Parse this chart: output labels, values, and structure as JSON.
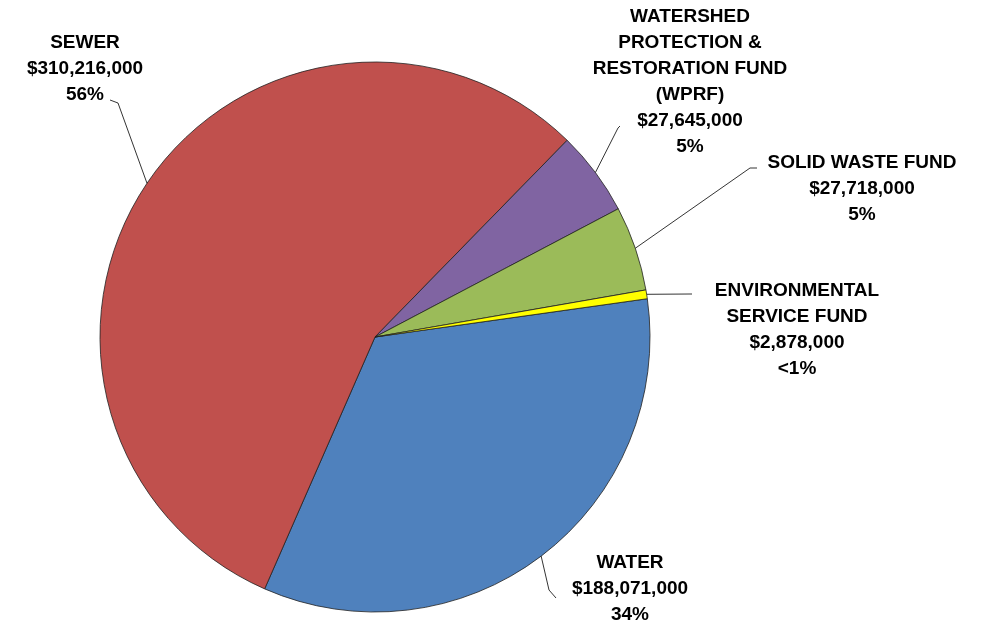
{
  "chart_data": {
    "type": "pie",
    "categories": [
      "WATER",
      "SEWER",
      "WATERSHED PROTECTION & RESTORATION FUND (WPRF)",
      "SOLID WASTE FUND",
      "ENVIRONMENTAL SERVICE FUND"
    ],
    "values": [
      188071000,
      310216000,
      27645000,
      27718000,
      2878000
    ],
    "colors": [
      "#4f81bd",
      "#c0504d",
      "#8064a2",
      "#9bbb59",
      "#ffff00"
    ],
    "value_labels": [
      "$188,071,000\n34%",
      "$310,216,000\n56%",
      "$27,645,000\n5%",
      "$27,718,000\n5%",
      "$2,878,000\n<1%"
    ]
  }
}
